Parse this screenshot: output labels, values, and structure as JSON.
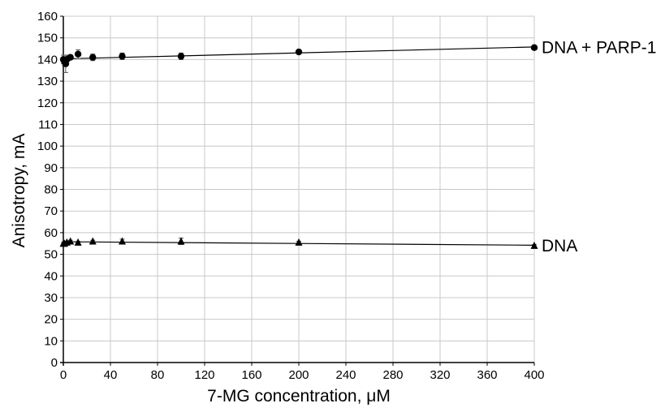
{
  "chart_data": {
    "type": "scatter",
    "title": "",
    "xlabel": "7-MG concentration, μM",
    "ylabel": "Anisotropy, mA",
    "xlim": [
      0,
      400
    ],
    "ylim": [
      0,
      160
    ],
    "xticks": [
      0,
      40,
      80,
      120,
      160,
      200,
      240,
      280,
      320,
      360,
      400
    ],
    "yticks": [
      0,
      10,
      20,
      30,
      40,
      50,
      60,
      70,
      80,
      90,
      100,
      110,
      120,
      130,
      140,
      150,
      160
    ],
    "grid": true,
    "series": [
      {
        "name": "DNA + PARP-1",
        "marker": "circle",
        "color": "#000000",
        "points": [
          {
            "x": 0,
            "y": 140,
            "err": 2
          },
          {
            "x": 1,
            "y": 139,
            "err": 2
          },
          {
            "x": 2,
            "y": 138,
            "err": 4
          },
          {
            "x": 3,
            "y": 140,
            "err": 2
          },
          {
            "x": 6,
            "y": 141,
            "err": 1
          },
          {
            "x": 12.5,
            "y": 142.5,
            "err": 2
          },
          {
            "x": 25,
            "y": 141,
            "err": 1.5
          },
          {
            "x": 50,
            "y": 141.5,
            "err": 1.5
          },
          {
            "x": 100,
            "y": 141.5,
            "err": 1.5
          },
          {
            "x": 200,
            "y": 143.5,
            "err": 1
          },
          {
            "x": 400,
            "y": 145.5,
            "err": 1
          }
        ],
        "trend": [
          [
            0,
            140.3
          ],
          [
            400,
            145.8
          ]
        ]
      },
      {
        "name": "DNA",
        "marker": "triangle",
        "color": "#000000",
        "points": [
          {
            "x": 0,
            "y": 55,
            "err": 0.5
          },
          {
            "x": 1,
            "y": 55,
            "err": 0.5
          },
          {
            "x": 3,
            "y": 55.5,
            "err": 0.5
          },
          {
            "x": 6,
            "y": 56,
            "err": 0.5
          },
          {
            "x": 12.5,
            "y": 55.5,
            "err": 0.5
          },
          {
            "x": 25,
            "y": 56,
            "err": 0.5
          },
          {
            "x": 50,
            "y": 56,
            "err": 1
          },
          {
            "x": 100,
            "y": 56,
            "err": 1.5
          },
          {
            "x": 200,
            "y": 55.5,
            "err": 0.5
          },
          {
            "x": 400,
            "y": 54,
            "err": 0.5
          }
        ],
        "trend": [
          [
            0,
            55.8
          ],
          [
            400,
            54.2
          ]
        ]
      }
    ],
    "series_labels": [
      "DNA + PARP-1",
      "DNA"
    ]
  }
}
